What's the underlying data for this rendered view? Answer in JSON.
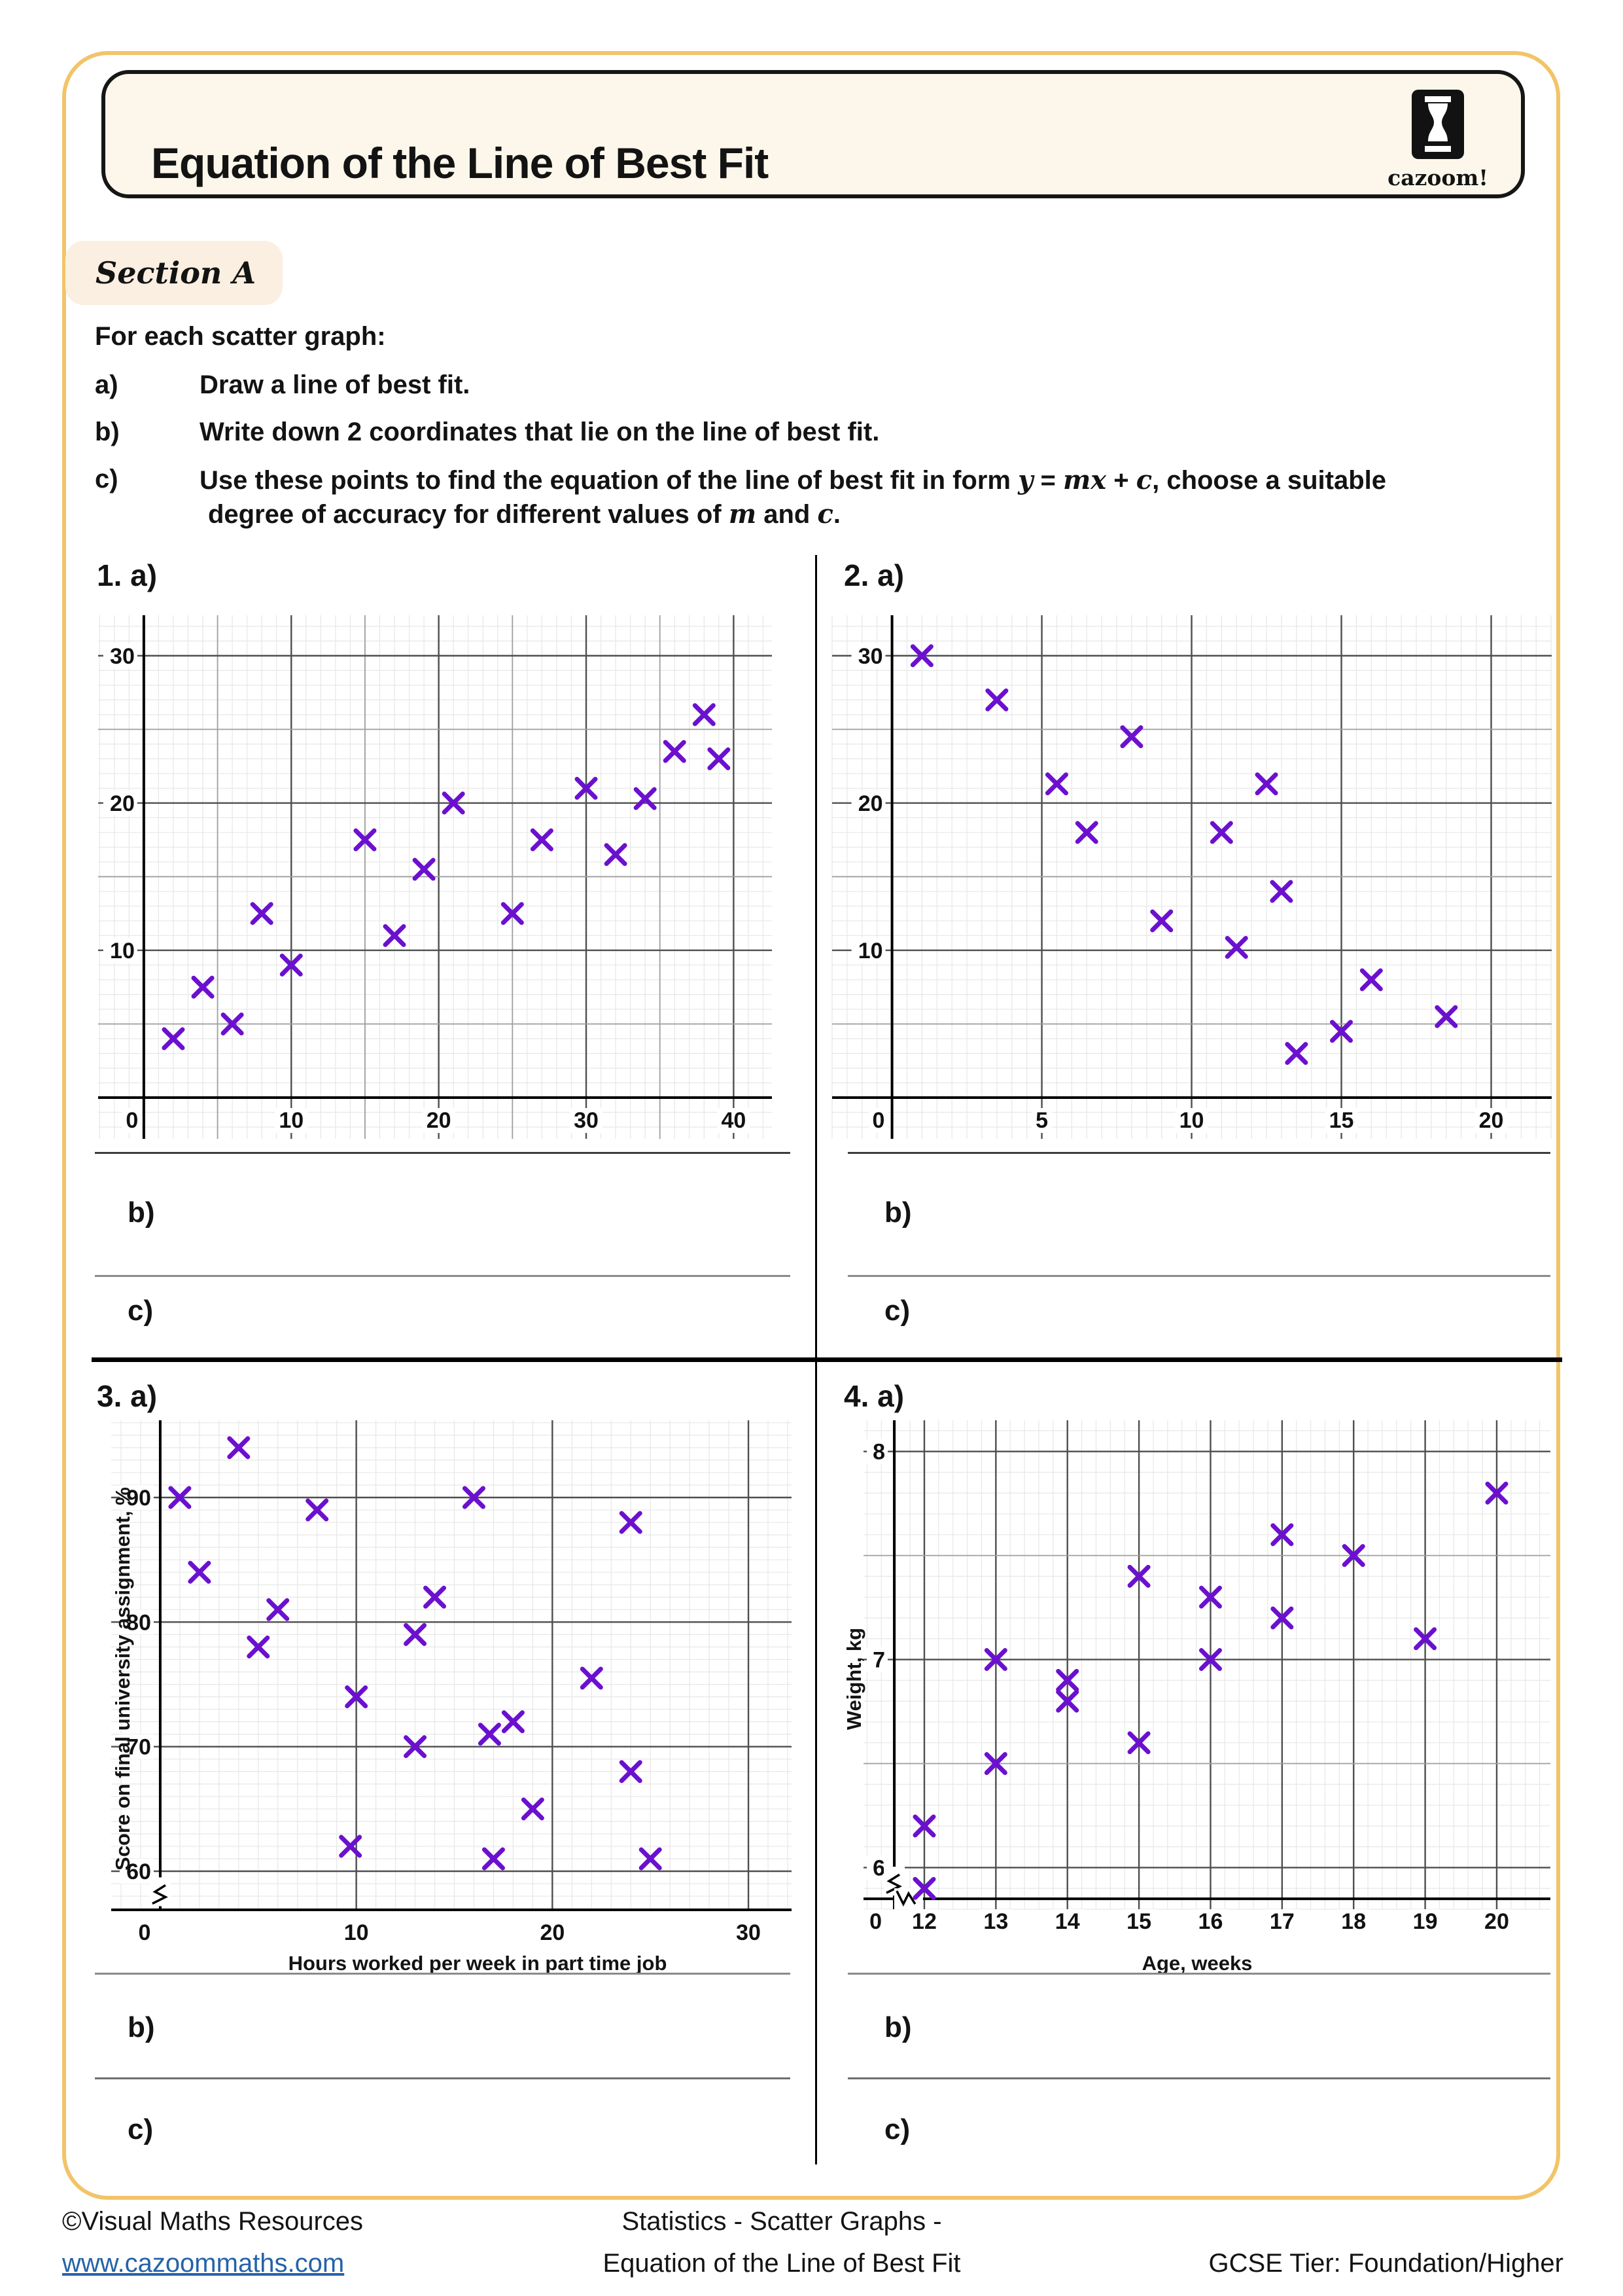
{
  "page": {
    "title": "Equation of the Line of Best Fit",
    "logo": {
      "text": "cazoom!"
    },
    "section": {
      "label": "Section A"
    },
    "instructions": {
      "intro": "For each scatter graph:",
      "a_letter": "a)",
      "a_text": "Draw a line of best fit.",
      "b_letter": "b)",
      "b_text": "Write down 2 coordinates that lie on the line of best fit.",
      "c_letter": "c)",
      "c_line1_pre": "Use these points to find the equation of the line of best fit in form ",
      "c_math_y": "y",
      "c_math_eq": " = ",
      "c_math_mx": "mx",
      "c_math_plus": " + ",
      "c_math_c": "c",
      "c_line1_post": ", choose a suitable",
      "c_line2_pre": "degree of accuracy for different values of ",
      "c_m": "m",
      "c_and": " and ",
      "c_c": "c",
      "c_period": "."
    },
    "questions": [
      {
        "label": "1. a)",
        "b": "b)",
        "c": "c)"
      },
      {
        "label": "2. a)",
        "b": "b)",
        "c": "c)"
      },
      {
        "label": "3. a)",
        "b": "b)",
        "c": "c)"
      },
      {
        "label": "4. a)",
        "b": "b)",
        "c": "c)"
      }
    ],
    "footer": {
      "credit": "©Visual Maths Resources",
      "url": "www.cazoommaths.com",
      "center_line1": "Statistics - Scatter Graphs -",
      "center_line2": "Equation of the Line of Best Fit",
      "tier": "GCSE Tier: Foundation/Higher"
    },
    "colors": {
      "accent_border": "#F2C469",
      "point": "#6B10CF",
      "link": "#2563A8"
    }
  },
  "chart_data": [
    {
      "type": "scatter",
      "title": null,
      "xlabel": null,
      "ylabel": null,
      "xlim": [
        0,
        40
      ],
      "ylim": [
        0,
        30
      ],
      "x_major": 5,
      "x_minor": 1,
      "y_major": 5,
      "y_minor": 1,
      "dark_x": [
        10,
        20,
        30,
        40
      ],
      "dark_y": [
        10,
        20,
        30
      ],
      "x_tick_labels": [
        {
          "v": -0.8,
          "t": "0"
        },
        {
          "v": 10,
          "t": "10"
        },
        {
          "v": 20,
          "t": "20"
        },
        {
          "v": 30,
          "t": "30"
        },
        {
          "v": 40,
          "t": "40"
        }
      ],
      "y_tick_labels": [
        {
          "v": 10,
          "t": "10"
        },
        {
          "v": 20,
          "t": "20"
        },
        {
          "v": 30,
          "t": "30"
        }
      ],
      "points": [
        [
          2,
          4
        ],
        [
          4,
          7.5
        ],
        [
          6,
          5
        ],
        [
          8,
          12.5
        ],
        [
          10,
          9
        ],
        [
          15,
          17.5
        ],
        [
          17,
          11
        ],
        [
          19,
          15.5
        ],
        [
          21,
          20
        ],
        [
          25,
          12.5
        ],
        [
          27,
          17.5
        ],
        [
          30,
          21
        ],
        [
          32,
          16.5
        ],
        [
          34,
          20.3
        ],
        [
          36,
          23.5
        ],
        [
          38,
          26
        ],
        [
          39,
          23
        ]
      ],
      "render": {
        "win": [
          -3.1,
          42.6,
          -2.8,
          32.75
        ],
        "gridH": 800,
        "yAxisX": 0,
        "xAxisY": 0,
        "breaks": []
      }
    },
    {
      "type": "scatter",
      "title": null,
      "xlabel": null,
      "ylabel": null,
      "xlim": [
        0,
        20
      ],
      "ylim": [
        0,
        30
      ],
      "x_major": 5,
      "x_minor": 0.5,
      "y_major": 5,
      "y_minor": 1,
      "dark_x": [
        5,
        10,
        15,
        20
      ],
      "dark_y": [
        10,
        20,
        30
      ],
      "x_tick_labels": [
        {
          "v": -0.45,
          "t": "0"
        },
        {
          "v": 5,
          "t": "5"
        },
        {
          "v": 10,
          "t": "10"
        },
        {
          "v": 15,
          "t": "15"
        },
        {
          "v": 20,
          "t": "20"
        }
      ],
      "y_tick_labels": [
        {
          "v": 10,
          "t": "10"
        },
        {
          "v": 20,
          "t": "20"
        },
        {
          "v": 30,
          "t": "30"
        }
      ],
      "points": [
        [
          1,
          30
        ],
        [
          3.5,
          27
        ],
        [
          5.5,
          21.3
        ],
        [
          6.5,
          18
        ],
        [
          8,
          24.5
        ],
        [
          9,
          12
        ],
        [
          11,
          18
        ],
        [
          11.5,
          10.2
        ],
        [
          12.5,
          21.3
        ],
        [
          13,
          14
        ],
        [
          13.5,
          3
        ],
        [
          15,
          4.5
        ],
        [
          16,
          8
        ],
        [
          18.5,
          5.5
        ]
      ],
      "render": {
        "win": [
          -2,
          22.02,
          -2.8,
          32.75
        ],
        "gridH": 800,
        "yAxisX": 0,
        "xAxisY": 0,
        "breaks": []
      }
    },
    {
      "type": "scatter",
      "title": null,
      "xlabel": "Hours worked per week in part time job",
      "ylabel": "Score on final university assignment, %",
      "xlim": [
        0,
        30
      ],
      "ylim": [
        60,
        95
      ],
      "y_axis_break": true,
      "x_major": 10,
      "x_minor": 1,
      "y_major": 10,
      "y_minor": 1,
      "dark_x": [
        10,
        20,
        30
      ],
      "dark_y": [
        60,
        70,
        80,
        90
      ],
      "x_tick_labels": [
        {
          "v": -0.8,
          "t": "0"
        },
        {
          "v": 10,
          "t": "10"
        },
        {
          "v": 20,
          "t": "20"
        },
        {
          "v": 30,
          "t": "30"
        }
      ],
      "y_tick_labels": [
        {
          "v": 60,
          "t": "60"
        },
        {
          "v": 70,
          "t": "70"
        },
        {
          "v": 80,
          "t": "80"
        },
        {
          "v": 90,
          "t": "90"
        }
      ],
      "points": [
        [
          1,
          90
        ],
        [
          2,
          84
        ],
        [
          4,
          94
        ],
        [
          5,
          78
        ],
        [
          6,
          81
        ],
        [
          8,
          89
        ],
        [
          9.7,
          62
        ],
        [
          10,
          74
        ],
        [
          13,
          79
        ],
        [
          13,
          70
        ],
        [
          14,
          82
        ],
        [
          16,
          90
        ],
        [
          16.8,
          71
        ],
        [
          17,
          61
        ],
        [
          18,
          72
        ],
        [
          19,
          65
        ],
        [
          22,
          75.5
        ],
        [
          24,
          88
        ],
        [
          24,
          68
        ],
        [
          25,
          61
        ]
      ],
      "render": {
        "win": [
          -2.5,
          32.2,
          56.9,
          96.2
        ],
        "gridH": 748,
        "yAxisX": 0,
        "xAxisY": 56.9,
        "breaks": [
          {
            "axis": "y",
            "at": 58.35
          }
        ]
      }
    },
    {
      "type": "scatter",
      "title": null,
      "xlabel": "Age, weeks",
      "ylabel": "Weight, kg",
      "xlim": [
        12,
        20
      ],
      "ylim": [
        6,
        8
      ],
      "x_axis_break": true,
      "y_axis_break": true,
      "x_major": 1,
      "x_minor": 0.2,
      "y_major": 0.5,
      "y_minor": 0.1,
      "dark_x": [
        12,
        13,
        14,
        15,
        16,
        17,
        18,
        19,
        20
      ],
      "dark_y": [
        6,
        7,
        8
      ],
      "x_tick_labels": [
        {
          "v": 11.32,
          "t": "0"
        },
        {
          "v": 12,
          "t": "12"
        },
        {
          "v": 13,
          "t": "13"
        },
        {
          "v": 14,
          "t": "14"
        },
        {
          "v": 15,
          "t": "15"
        },
        {
          "v": 16,
          "t": "16"
        },
        {
          "v": 17,
          "t": "17"
        },
        {
          "v": 18,
          "t": "18"
        },
        {
          "v": 19,
          "t": "19"
        },
        {
          "v": 20,
          "t": "20"
        }
      ],
      "y_tick_labels": [
        {
          "v": 6,
          "t": "6"
        },
        {
          "v": 7,
          "t": "7"
        },
        {
          "v": 8,
          "t": "8"
        }
      ],
      "points": [
        [
          12,
          5.9
        ],
        [
          12,
          6.2
        ],
        [
          13,
          6.5
        ],
        [
          13,
          7
        ],
        [
          14,
          6.8
        ],
        [
          14,
          6.9
        ],
        [
          15,
          6.6
        ],
        [
          15,
          7.4
        ],
        [
          16,
          7
        ],
        [
          16,
          7.3
        ],
        [
          17,
          7.2
        ],
        [
          17,
          7.6
        ],
        [
          18,
          7.5
        ],
        [
          19,
          7.1
        ],
        [
          20,
          7.8
        ]
      ],
      "render": {
        "win": [
          11.15,
          20.75,
          5.8,
          8.15
        ],
        "gridH": 747,
        "yAxisX": 11.58,
        "xAxisY": 5.85,
        "breaks": [
          {
            "axis": "y",
            "at": 5.935
          },
          {
            "axis": "x",
            "at": 11.78
          }
        ]
      }
    }
  ]
}
